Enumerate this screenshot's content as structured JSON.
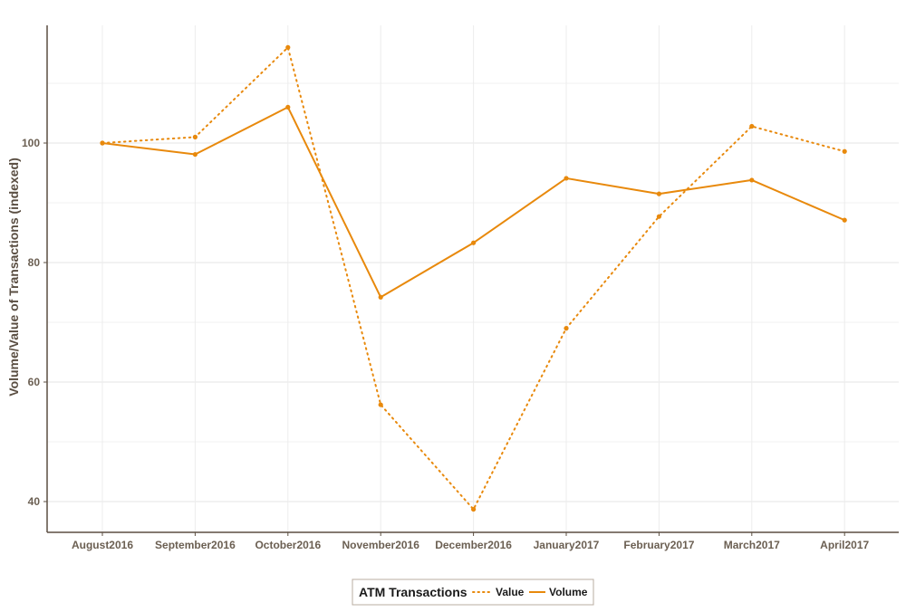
{
  "chart_data": {
    "type": "line",
    "title": "",
    "xlabel": "",
    "ylabel": "Volume/Value of Transactions (indexed)",
    "categories": [
      "August2016",
      "September2016",
      "October2016",
      "November2016",
      "December2016",
      "January2017",
      "February2017",
      "March2017",
      "April2017"
    ],
    "series": [
      {
        "name": "Value",
        "style": "dotted",
        "color": "#e8890c",
        "values": [
          100,
          101,
          116,
          56.2,
          38.7,
          69,
          87.7,
          102.8,
          98.6
        ]
      },
      {
        "name": "Volume",
        "style": "solid",
        "color": "#e8890c",
        "values": [
          100,
          98.1,
          106,
          74.2,
          83.3,
          94.1,
          91.5,
          93.8,
          87.1
        ]
      }
    ],
    "ylim": [
      35,
      120
    ],
    "yticks": [
      40,
      60,
      80,
      100
    ],
    "grid": true,
    "legend": {
      "title": "ATM Transactions",
      "position": "bottom"
    }
  }
}
